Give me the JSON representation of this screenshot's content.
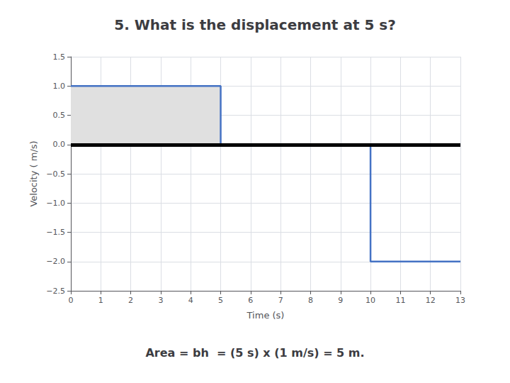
{
  "chart_data": {
    "type": "line",
    "title": "5. What is the displacement at 5 s?",
    "annotation": "Area = bh  = (5 s) x (1 m/s) = 5 m.",
    "xlabel": "Time (s)",
    "ylabel": "Velocity ( m/s)",
    "x": [
      0,
      5,
      5,
      10,
      10,
      13
    ],
    "values": [
      1,
      1,
      0,
      0,
      -2,
      -2
    ],
    "color": "#4472C4",
    "shaded_area": {
      "x": [
        0,
        5,
        5,
        0
      ],
      "y": [
        0,
        0,
        1,
        1
      ],
      "color": "#e0e0e0"
    },
    "hline": {
      "y": 0,
      "color": "black"
    },
    "xlim": [
      0,
      13
    ],
    "ylim": [
      -2.5,
      1.5
    ],
    "xticks": [
      0,
      1,
      2,
      3,
      4,
      5,
      6,
      7,
      8,
      9,
      10,
      11,
      12,
      13
    ],
    "yticks": [
      {
        "value": -2.5,
        "label": "−2.5"
      },
      {
        "value": -2,
        "label": "−2.0"
      },
      {
        "value": -1.5,
        "label": "−1.5"
      },
      {
        "value": -1,
        "label": "−1.0"
      },
      {
        "value": -0.5,
        "label": "−0.5"
      },
      {
        "value": 0,
        "label": "0.0"
      },
      0.5,
      {
        "value": 1,
        "label": "1.0"
      },
      1.5
    ],
    "grid": true
  }
}
